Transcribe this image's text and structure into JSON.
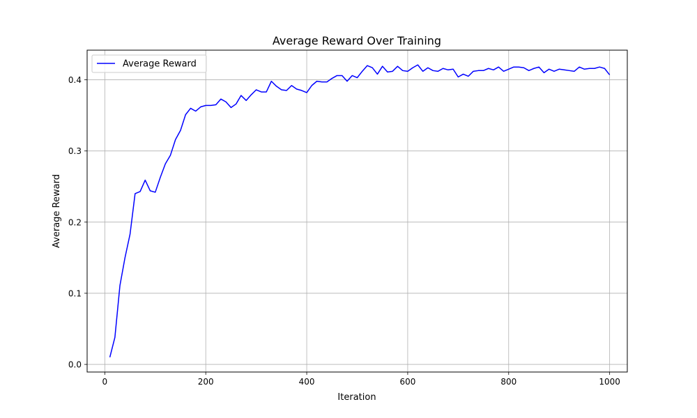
{
  "chart_data": {
    "type": "line",
    "title": "Average Reward Over Training",
    "xlabel": "Iteration",
    "ylabel": "Average Reward",
    "xlim": [
      -35,
      1035
    ],
    "ylim": [
      -0.0107,
      0.4417
    ],
    "xticks": [
      0,
      200,
      400,
      600,
      800,
      1000
    ],
    "xtick_labels": [
      "0",
      "200",
      "400",
      "600",
      "800",
      "1000"
    ],
    "yticks": [
      0.0,
      0.1,
      0.2,
      0.3,
      0.4
    ],
    "ytick_labels": [
      "0.0",
      "0.1",
      "0.2",
      "0.3",
      "0.4"
    ],
    "grid": true,
    "legend_position": "top-left",
    "series": [
      {
        "name": "Average Reward",
        "color": "#0000ff",
        "x": [
          10,
          20,
          30,
          40,
          50,
          60,
          70,
          80,
          90,
          100,
          110,
          120,
          130,
          140,
          150,
          160,
          170,
          180,
          190,
          200,
          210,
          220,
          230,
          240,
          250,
          260,
          270,
          280,
          290,
          300,
          310,
          320,
          330,
          340,
          350,
          360,
          370,
          380,
          390,
          400,
          410,
          420,
          430,
          440,
          450,
          460,
          470,
          480,
          490,
          500,
          510,
          520,
          530,
          540,
          550,
          560,
          570,
          580,
          590,
          600,
          610,
          620,
          630,
          640,
          650,
          660,
          670,
          680,
          690,
          700,
          710,
          720,
          730,
          740,
          750,
          760,
          770,
          780,
          790,
          800,
          810,
          820,
          830,
          840,
          850,
          860,
          870,
          880,
          890,
          900,
          910,
          920,
          930,
          940,
          950,
          960,
          970,
          980,
          990,
          1000
        ],
        "values": [
          0.01,
          0.038,
          0.111,
          0.15,
          0.183,
          0.24,
          0.243,
          0.259,
          0.244,
          0.242,
          0.263,
          0.282,
          0.294,
          0.316,
          0.329,
          0.351,
          0.36,
          0.356,
          0.362,
          0.364,
          0.364,
          0.365,
          0.373,
          0.369,
          0.361,
          0.366,
          0.378,
          0.371,
          0.379,
          0.386,
          0.383,
          0.383,
          0.398,
          0.391,
          0.386,
          0.385,
          0.392,
          0.387,
          0.385,
          0.382,
          0.392,
          0.398,
          0.397,
          0.397,
          0.402,
          0.406,
          0.406,
          0.398,
          0.406,
          0.403,
          0.412,
          0.42,
          0.417,
          0.408,
          0.419,
          0.411,
          0.412,
          0.419,
          0.413,
          0.412,
          0.417,
          0.421,
          0.412,
          0.417,
          0.413,
          0.412,
          0.416,
          0.414,
          0.415,
          0.404,
          0.408,
          0.405,
          0.412,
          0.413,
          0.413,
          0.416,
          0.414,
          0.418,
          0.412,
          0.415,
          0.418,
          0.418,
          0.417,
          0.413,
          0.416,
          0.418,
          0.41,
          0.415,
          0.412,
          0.415,
          0.414,
          0.413,
          0.412,
          0.418,
          0.415,
          0.416,
          0.416,
          0.418,
          0.416,
          0.407
        ]
      }
    ]
  }
}
